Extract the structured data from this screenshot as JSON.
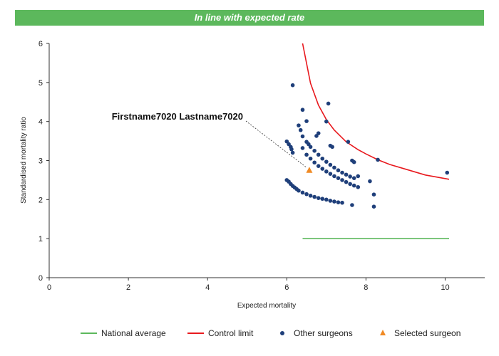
{
  "banner": {
    "text": "In line with expected rate",
    "color": "#5cb85c"
  },
  "chart_data": {
    "type": "scatter",
    "xlabel": "Expected mortality",
    "ylabel": "Standardised mortality ratio",
    "xlim": [
      0,
      11
    ],
    "ylim": [
      0,
      6
    ],
    "xticks": [
      0,
      2,
      4,
      6,
      8,
      10
    ],
    "yticks": [
      0,
      1,
      2,
      3,
      4,
      5,
      6
    ],
    "grid": false,
    "legend_position": "bottom",
    "annotation": {
      "text": "Firstname7020 Lastname7020",
      "x": 6.57,
      "y": 2.75
    },
    "series": [
      {
        "name": "National average",
        "type": "line",
        "color": "#5cb85c",
        "x": [
          6.4,
          10.1
        ],
        "y": [
          1.0,
          1.0
        ]
      },
      {
        "name": "Control limit",
        "type": "line",
        "color": "#e8191e",
        "x": [
          6.4,
          6.6,
          6.8,
          7.0,
          7.2,
          7.5,
          7.8,
          8.0,
          8.3,
          8.6,
          9.0,
          9.5,
          10.1
        ],
        "y": [
          6.0,
          4.98,
          4.42,
          4.05,
          3.78,
          3.48,
          3.28,
          3.17,
          3.02,
          2.9,
          2.78,
          2.63,
          2.52
        ]
      },
      {
        "name": "Other surgeons",
        "type": "scatter",
        "color": "#1f3f7a",
        "x": [
          6.15,
          6.4,
          6.5,
          6.4,
          7.05,
          7.0,
          6.8,
          6.75,
          7.1,
          7.15,
          7.55,
          8.1,
          8.3,
          10.05,
          7.65,
          7.7,
          8.2,
          8.2,
          7.65,
          6.0,
          6.05,
          6.1,
          6.12,
          6.15,
          6.3,
          6.35,
          6.4,
          6.5,
          6.6,
          6.7,
          6.8,
          6.9,
          7.0,
          7.1,
          7.2,
          7.3,
          7.4,
          7.5,
          7.6,
          7.7,
          7.8,
          6.5,
          6.55,
          6.6,
          6.7,
          6.8,
          6.9,
          7.0,
          7.1,
          7.2,
          7.3,
          7.4,
          7.5,
          7.6,
          7.7,
          7.8,
          6.0,
          6.05,
          6.1,
          6.15,
          6.2,
          6.25,
          6.3,
          6.4,
          6.5,
          6.6,
          6.7,
          6.8,
          6.9,
          7.0,
          7.1,
          7.2,
          7.3,
          7.4
        ],
        "y": [
          4.93,
          4.3,
          4.01,
          3.62,
          4.46,
          4.0,
          3.7,
          3.63,
          3.38,
          3.35,
          3.48,
          2.47,
          3.02,
          2.69,
          3.0,
          2.96,
          2.13,
          1.82,
          1.86,
          3.49,
          3.42,
          3.35,
          3.29,
          3.2,
          3.9,
          3.78,
          3.32,
          3.15,
          3.05,
          2.95,
          2.86,
          2.79,
          2.72,
          2.66,
          2.6,
          2.55,
          2.5,
          2.45,
          2.4,
          2.36,
          2.32,
          3.48,
          3.42,
          3.35,
          3.25,
          3.15,
          3.05,
          2.97,
          2.89,
          2.82,
          2.75,
          2.69,
          2.64,
          2.59,
          2.55,
          2.6,
          2.5,
          2.46,
          2.4,
          2.35,
          2.31,
          2.27,
          2.23,
          2.18,
          2.14,
          2.1,
          2.07,
          2.04,
          2.02,
          2.0,
          1.97,
          1.95,
          1.93,
          1.92
        ]
      },
      {
        "name": "Selected surgeon",
        "type": "scatter",
        "marker": "triangle",
        "color": "#f08a24",
        "x": [
          6.57
        ],
        "y": [
          2.75
        ]
      }
    ]
  }
}
